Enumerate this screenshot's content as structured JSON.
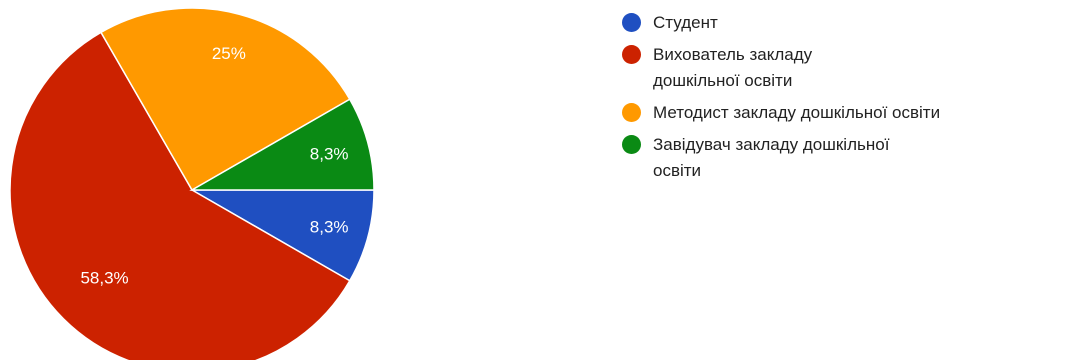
{
  "chart_data": {
    "type": "pie",
    "title": "",
    "slices": [
      {
        "label": "Студент",
        "value": 8.3,
        "display": "8,3%",
        "color": "#1f4fc1"
      },
      {
        "label": "Вихователь закладу дошкільної освіти",
        "value": 58.3,
        "display": "58,3%",
        "color": "#cc2200"
      },
      {
        "label": "Методист закладу дошкільної освіти",
        "value": 25.0,
        "display": "25%",
        "color": "#ff9900"
      },
      {
        "label": "Завідувач закладу дошкільної освіти",
        "value": 8.3,
        "display": "8,3%",
        "color": "#0a8a14"
      }
    ],
    "legend_position": "right",
    "start_angle_deg": 0,
    "direction": "clockwise"
  }
}
